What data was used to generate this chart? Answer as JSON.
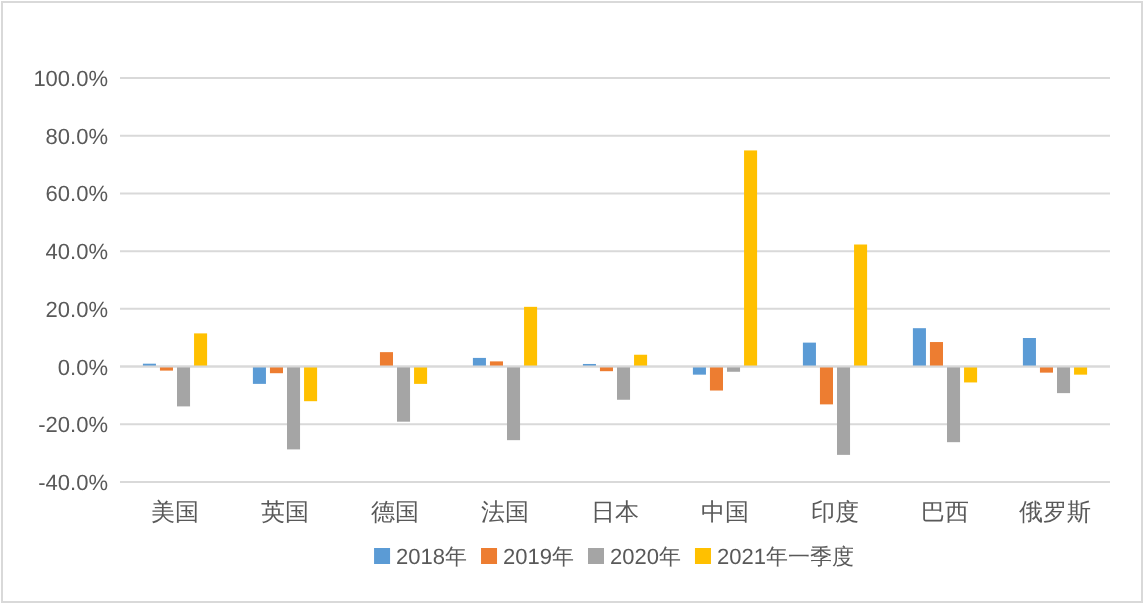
{
  "chart_data": {
    "type": "bar",
    "categories": [
      "美国",
      "英国",
      "德国",
      "法国",
      "日本",
      "中国",
      "印度",
      "巴西",
      "俄罗斯"
    ],
    "series": [
      {
        "name": "2018年",
        "color": "#5b9bd5",
        "values": [
          1.0,
          -6.0,
          null,
          3.0,
          0.9,
          -2.8,
          8.3,
          13.3,
          9.9
        ]
      },
      {
        "name": "2019年",
        "color": "#ed7d31",
        "values": [
          -1.4,
          -2.3,
          5.0,
          1.8,
          -1.6,
          -8.3,
          -13.1,
          8.5,
          -2.1
        ]
      },
      {
        "name": "2020年",
        "color": "#a5a5a5",
        "values": [
          -13.8,
          -28.7,
          -19.1,
          -25.5,
          -11.5,
          -1.8,
          -30.6,
          -26.2,
          -9.2
        ]
      },
      {
        "name": "2021年一季度",
        "color": "#ffc000",
        "values": [
          11.5,
          -12.0,
          -6.0,
          20.7,
          4.1,
          74.9,
          42.3,
          -5.5,
          -2.8
        ]
      }
    ],
    "ylim": [
      -40,
      100
    ],
    "yticks": [
      {
        "value": -40,
        "label": "-40.0%"
      },
      {
        "value": -20,
        "label": "-20.0%"
      },
      {
        "value": 0,
        "label": "0.0%"
      },
      {
        "value": 20,
        "label": "20.0%"
      },
      {
        "value": 40,
        "label": "40.0%"
      },
      {
        "value": 60,
        "label": "60.0%"
      },
      {
        "value": 80,
        "label": "80.0%"
      },
      {
        "value": 100,
        "label": "100.0%"
      }
    ],
    "grid": "y",
    "legend": "bottom"
  }
}
